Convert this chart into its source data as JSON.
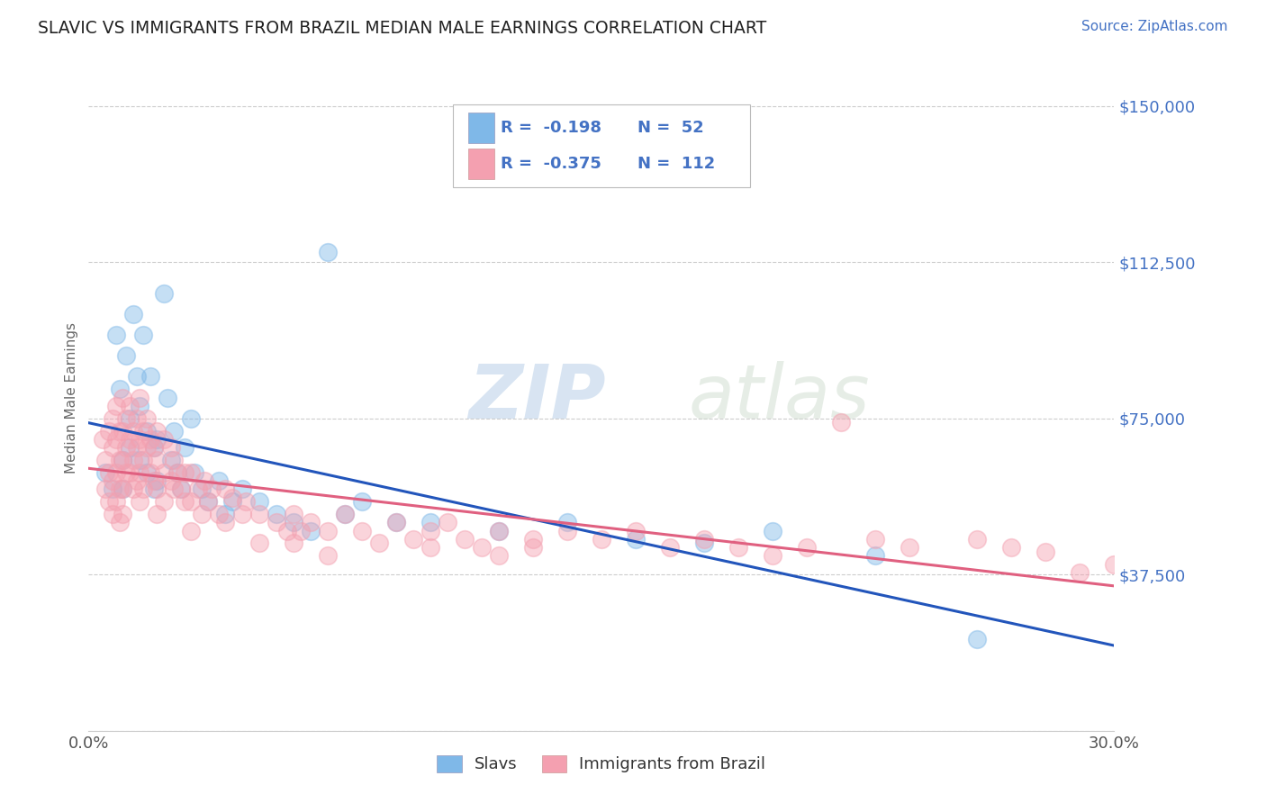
{
  "title": "SLAVIC VS IMMIGRANTS FROM BRAZIL MEDIAN MALE EARNINGS CORRELATION CHART",
  "source": "Source: ZipAtlas.com",
  "ylabel": "Median Male Earnings",
  "xlim": [
    0.0,
    0.3
  ],
  "ylim": [
    0,
    160000
  ],
  "yticks": [
    0,
    37500,
    75000,
    112500,
    150000
  ],
  "ytick_labels": [
    "",
    "$37,500",
    "$75,000",
    "$112,500",
    "$150,000"
  ],
  "xticks": [
    0.0,
    0.3
  ],
  "xtick_labels": [
    "0.0%",
    "30.0%"
  ],
  "background_color": "#ffffff",
  "grid_color": "#cccccc",
  "color_slavs": "#7fb8e8",
  "color_brazil": "#f4a0b0",
  "color_text_blue": "#4472c4",
  "title_color": "#222222",
  "source_color": "#4472c4",
  "axis_label_color": "#666666",
  "tick_color": "#4472c4",
  "line_color_slavs": "#2255bb",
  "line_color_brazil": "#e06080",
  "slavs_scatter": [
    [
      0.005,
      62000
    ],
    [
      0.007,
      58000
    ],
    [
      0.008,
      95000
    ],
    [
      0.009,
      82000
    ],
    [
      0.01,
      65000
    ],
    [
      0.01,
      58000
    ],
    [
      0.011,
      90000
    ],
    [
      0.012,
      75000
    ],
    [
      0.012,
      68000
    ],
    [
      0.013,
      100000
    ],
    [
      0.014,
      85000
    ],
    [
      0.015,
      78000
    ],
    [
      0.015,
      65000
    ],
    [
      0.016,
      95000
    ],
    [
      0.017,
      72000
    ],
    [
      0.017,
      62000
    ],
    [
      0.018,
      85000
    ],
    [
      0.019,
      68000
    ],
    [
      0.019,
      58000
    ],
    [
      0.02,
      70000
    ],
    [
      0.02,
      60000
    ],
    [
      0.022,
      105000
    ],
    [
      0.023,
      80000
    ],
    [
      0.024,
      65000
    ],
    [
      0.025,
      72000
    ],
    [
      0.026,
      62000
    ],
    [
      0.027,
      58000
    ],
    [
      0.028,
      68000
    ],
    [
      0.03,
      75000
    ],
    [
      0.031,
      62000
    ],
    [
      0.033,
      58000
    ],
    [
      0.035,
      55000
    ],
    [
      0.038,
      60000
    ],
    [
      0.04,
      52000
    ],
    [
      0.042,
      55000
    ],
    [
      0.045,
      58000
    ],
    [
      0.05,
      55000
    ],
    [
      0.055,
      52000
    ],
    [
      0.06,
      50000
    ],
    [
      0.065,
      48000
    ],
    [
      0.07,
      115000
    ],
    [
      0.075,
      52000
    ],
    [
      0.08,
      55000
    ],
    [
      0.09,
      50000
    ],
    [
      0.1,
      50000
    ],
    [
      0.12,
      48000
    ],
    [
      0.14,
      50000
    ],
    [
      0.16,
      46000
    ],
    [
      0.18,
      45000
    ],
    [
      0.2,
      48000
    ],
    [
      0.23,
      42000
    ],
    [
      0.26,
      22000
    ]
  ],
  "brazil_scatter": [
    [
      0.004,
      70000
    ],
    [
      0.005,
      65000
    ],
    [
      0.005,
      58000
    ],
    [
      0.006,
      72000
    ],
    [
      0.006,
      62000
    ],
    [
      0.006,
      55000
    ],
    [
      0.007,
      75000
    ],
    [
      0.007,
      68000
    ],
    [
      0.007,
      60000
    ],
    [
      0.007,
      52000
    ],
    [
      0.008,
      78000
    ],
    [
      0.008,
      70000
    ],
    [
      0.008,
      62000
    ],
    [
      0.008,
      55000
    ],
    [
      0.009,
      72000
    ],
    [
      0.009,
      65000
    ],
    [
      0.009,
      58000
    ],
    [
      0.009,
      50000
    ],
    [
      0.01,
      80000
    ],
    [
      0.01,
      72000
    ],
    [
      0.01,
      65000
    ],
    [
      0.01,
      58000
    ],
    [
      0.01,
      52000
    ],
    [
      0.011,
      75000
    ],
    [
      0.011,
      68000
    ],
    [
      0.011,
      62000
    ],
    [
      0.012,
      78000
    ],
    [
      0.012,
      70000
    ],
    [
      0.012,
      62000
    ],
    [
      0.013,
      72000
    ],
    [
      0.013,
      65000
    ],
    [
      0.013,
      58000
    ],
    [
      0.014,
      75000
    ],
    [
      0.014,
      68000
    ],
    [
      0.014,
      60000
    ],
    [
      0.015,
      80000
    ],
    [
      0.015,
      70000
    ],
    [
      0.015,
      62000
    ],
    [
      0.015,
      55000
    ],
    [
      0.016,
      72000
    ],
    [
      0.016,
      65000
    ],
    [
      0.016,
      58000
    ],
    [
      0.017,
      75000
    ],
    [
      0.017,
      68000
    ],
    [
      0.018,
      70000
    ],
    [
      0.018,
      62000
    ],
    [
      0.019,
      68000
    ],
    [
      0.019,
      60000
    ],
    [
      0.02,
      72000
    ],
    [
      0.02,
      65000
    ],
    [
      0.02,
      58000
    ],
    [
      0.02,
      52000
    ],
    [
      0.022,
      70000
    ],
    [
      0.022,
      62000
    ],
    [
      0.022,
      55000
    ],
    [
      0.024,
      68000
    ],
    [
      0.024,
      60000
    ],
    [
      0.025,
      65000
    ],
    [
      0.025,
      58000
    ],
    [
      0.026,
      62000
    ],
    [
      0.027,
      58000
    ],
    [
      0.028,
      62000
    ],
    [
      0.028,
      55000
    ],
    [
      0.03,
      62000
    ],
    [
      0.03,
      55000
    ],
    [
      0.03,
      48000
    ],
    [
      0.032,
      58000
    ],
    [
      0.033,
      52000
    ],
    [
      0.034,
      60000
    ],
    [
      0.035,
      55000
    ],
    [
      0.036,
      58000
    ],
    [
      0.038,
      52000
    ],
    [
      0.04,
      58000
    ],
    [
      0.04,
      50000
    ],
    [
      0.042,
      56000
    ],
    [
      0.045,
      52000
    ],
    [
      0.046,
      55000
    ],
    [
      0.05,
      52000
    ],
    [
      0.05,
      45000
    ],
    [
      0.055,
      50000
    ],
    [
      0.058,
      48000
    ],
    [
      0.06,
      52000
    ],
    [
      0.06,
      45000
    ],
    [
      0.062,
      48000
    ],
    [
      0.065,
      50000
    ],
    [
      0.07,
      48000
    ],
    [
      0.07,
      42000
    ],
    [
      0.075,
      52000
    ],
    [
      0.08,
      48000
    ],
    [
      0.085,
      45000
    ],
    [
      0.09,
      50000
    ],
    [
      0.095,
      46000
    ],
    [
      0.1,
      48000
    ],
    [
      0.1,
      44000
    ],
    [
      0.105,
      50000
    ],
    [
      0.11,
      46000
    ],
    [
      0.115,
      44000
    ],
    [
      0.12,
      48000
    ],
    [
      0.12,
      42000
    ],
    [
      0.13,
      46000
    ],
    [
      0.13,
      44000
    ],
    [
      0.14,
      48000
    ],
    [
      0.15,
      46000
    ],
    [
      0.16,
      48000
    ],
    [
      0.17,
      44000
    ],
    [
      0.18,
      46000
    ],
    [
      0.19,
      44000
    ],
    [
      0.2,
      42000
    ],
    [
      0.21,
      44000
    ],
    [
      0.22,
      74000
    ],
    [
      0.23,
      46000
    ],
    [
      0.24,
      44000
    ],
    [
      0.26,
      46000
    ],
    [
      0.27,
      44000
    ],
    [
      0.28,
      43000
    ],
    [
      0.29,
      38000
    ],
    [
      0.3,
      40000
    ]
  ]
}
